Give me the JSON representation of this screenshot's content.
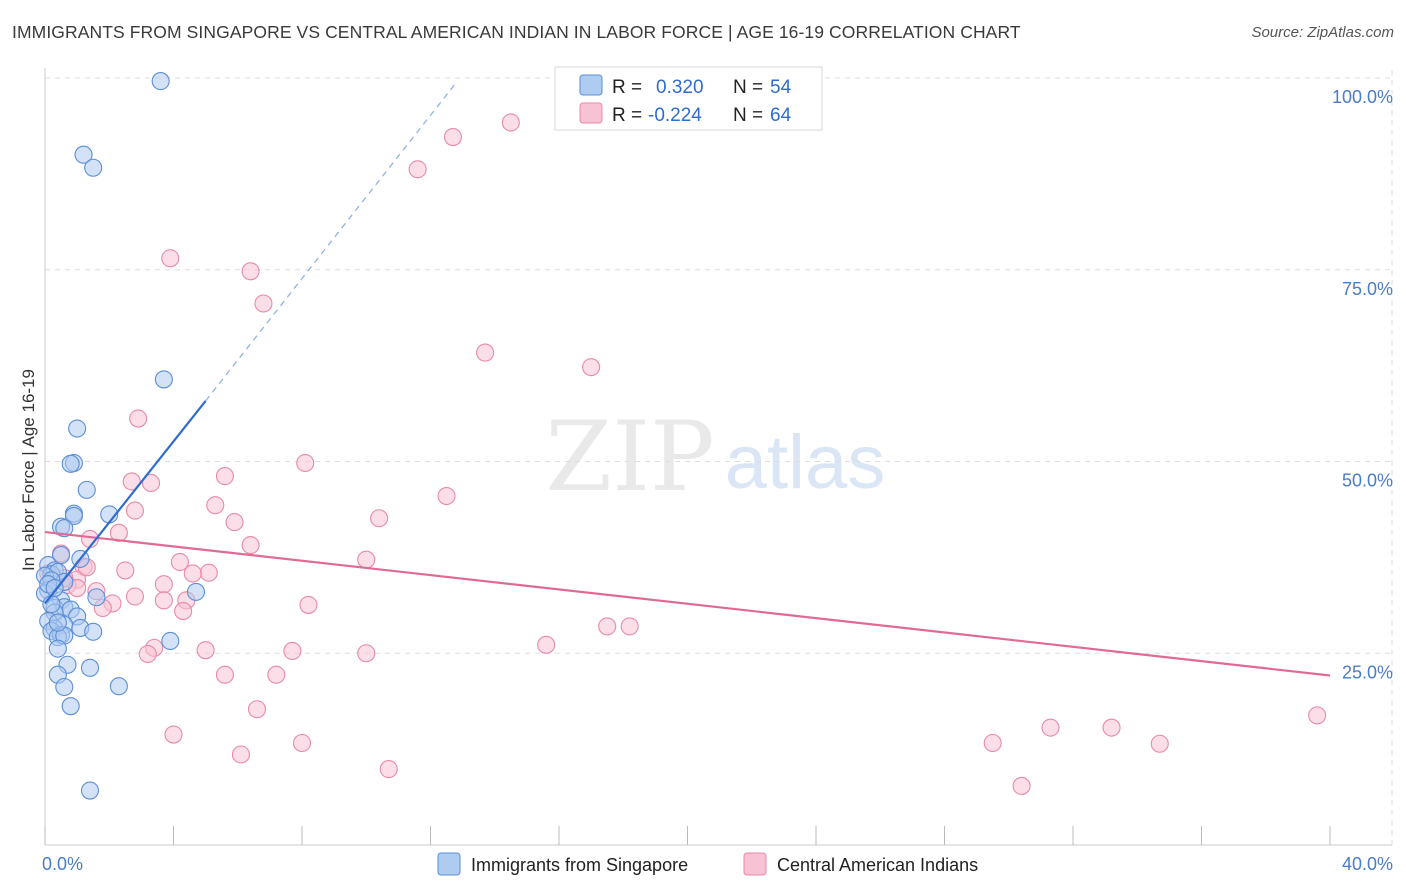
{
  "header": {
    "title": "IMMIGRANTS FROM SINGAPORE VS CENTRAL AMERICAN INDIAN IN LABOR FORCE | AGE 16-19 CORRELATION CHART",
    "source": "Source: ZipAtlas.com"
  },
  "watermark": {
    "zip": "ZIP",
    "atlas": "atlas"
  },
  "colors": {
    "blue_fill": "#aecbf0",
    "blue_stroke": "#5b8fd8",
    "blue_line": "#2f6bd0",
    "pink_fill": "#f7c3d4",
    "pink_stroke": "#e98aa8",
    "pink_line": "#e06a96",
    "tick_label": "#4a7cc9"
  },
  "legend": {
    "rows": [
      {
        "r_label": "R =",
        "r_value": "0.320",
        "n_label": "N =",
        "n_value": "54"
      },
      {
        "r_label": "R =",
        "r_value": "-0.224",
        "n_label": "N =",
        "n_value": "64"
      }
    ]
  },
  "chart_data": {
    "type": "scatter",
    "title": "IMMIGRANTS FROM SINGAPORE VS CENTRAL AMERICAN INDIAN IN LABOR FORCE | AGE 16-19 CORRELATION CHART",
    "xlabel": "",
    "ylabel": "In Labor Force | Age 16-19",
    "xlim": [
      0,
      40
    ],
    "ylim": [
      0,
      100
    ],
    "x_tick_labels": [
      "0.0%",
      "40.0%"
    ],
    "y_tick_labels": [
      "100.0%",
      "75.0%",
      "50.0%",
      "25.0%"
    ],
    "y_ticks": [
      100,
      75,
      50,
      25
    ],
    "x_minor_ticks": [
      0,
      4,
      8,
      12,
      16,
      20,
      24,
      28,
      32,
      36,
      40
    ],
    "grid": true,
    "series": [
      {
        "name": "Immigrants from Singapore",
        "color": "blue",
        "R": 0.32,
        "N": 54,
        "trend": {
          "x": [
            0.0,
            5.0
          ],
          "y": [
            31.5,
            57.9
          ]
        },
        "trend_extension": {
          "x": [
            5.0,
            12.8
          ],
          "y": [
            57.9,
            99.4
          ]
        },
        "points": [
          [
            3.6,
            99.6
          ],
          [
            1.2,
            90.0
          ],
          [
            1.5,
            88.3
          ],
          [
            3.7,
            60.7
          ],
          [
            1.0,
            54.3
          ],
          [
            0.9,
            49.8
          ],
          [
            0.8,
            49.7
          ],
          [
            1.3,
            46.3
          ],
          [
            0.9,
            43.2
          ],
          [
            0.9,
            42.9
          ],
          [
            2.0,
            43.1
          ],
          [
            0.5,
            41.5
          ],
          [
            0.6,
            41.3
          ],
          [
            0.5,
            37.8
          ],
          [
            1.1,
            37.3
          ],
          [
            0.1,
            36.5
          ],
          [
            0.3,
            35.8
          ],
          [
            0.2,
            35.3
          ],
          [
            0.4,
            35.6
          ],
          [
            0.0,
            35.1
          ],
          [
            0.6,
            34.3
          ],
          [
            0.2,
            34.5
          ],
          [
            0.1,
            33.2
          ],
          [
            0.0,
            32.8
          ],
          [
            0.5,
            31.9
          ],
          [
            4.7,
            33.0
          ],
          [
            1.6,
            32.3
          ],
          [
            0.3,
            30.9
          ],
          [
            0.6,
            31.0
          ],
          [
            0.8,
            30.7
          ],
          [
            0.3,
            30.3
          ],
          [
            1.0,
            29.8
          ],
          [
            0.1,
            29.2
          ],
          [
            0.6,
            28.7
          ],
          [
            0.3,
            28.2
          ],
          [
            1.1,
            28.3
          ],
          [
            0.2,
            27.9
          ],
          [
            1.5,
            27.8
          ],
          [
            0.5,
            27.4
          ],
          [
            0.4,
            27.1
          ],
          [
            0.6,
            27.3
          ],
          [
            3.9,
            26.6
          ],
          [
            0.4,
            25.6
          ],
          [
            0.7,
            23.5
          ],
          [
            1.4,
            23.1
          ],
          [
            0.4,
            22.2
          ],
          [
            0.6,
            20.6
          ],
          [
            2.3,
            20.7
          ],
          [
            0.8,
            18.1
          ],
          [
            1.4,
            7.1
          ],
          [
            0.2,
            31.4
          ],
          [
            0.4,
            29.0
          ],
          [
            0.1,
            34.0
          ],
          [
            0.3,
            33.5
          ]
        ]
      },
      {
        "name": "Central American Indians",
        "color": "pink",
        "R": -0.224,
        "N": 64,
        "trend": {
          "x": [
            0.0,
            40.0
          ],
          "y": [
            40.8,
            22.1
          ]
        },
        "points": [
          [
            14.5,
            94.2
          ],
          [
            12.7,
            92.3
          ],
          [
            11.6,
            88.1
          ],
          [
            3.9,
            76.5
          ],
          [
            6.4,
            74.8
          ],
          [
            6.8,
            70.6
          ],
          [
            13.7,
            64.2
          ],
          [
            17.0,
            62.3
          ],
          [
            2.9,
            55.6
          ],
          [
            8.1,
            49.8
          ],
          [
            5.6,
            48.1
          ],
          [
            3.3,
            47.2
          ],
          [
            2.7,
            47.4
          ],
          [
            12.5,
            45.5
          ],
          [
            5.3,
            44.3
          ],
          [
            2.8,
            43.6
          ],
          [
            10.4,
            42.6
          ],
          [
            5.9,
            42.1
          ],
          [
            2.3,
            40.7
          ],
          [
            1.4,
            39.9
          ],
          [
            6.4,
            39.1
          ],
          [
            0.5,
            38.0
          ],
          [
            10.0,
            37.2
          ],
          [
            4.2,
            36.9
          ],
          [
            1.2,
            36.3
          ],
          [
            2.5,
            35.8
          ],
          [
            5.1,
            35.5
          ],
          [
            4.6,
            35.4
          ],
          [
            1.0,
            34.6
          ],
          [
            0.1,
            35.4
          ],
          [
            0.7,
            33.9
          ],
          [
            3.7,
            34.0
          ],
          [
            1.6,
            33.1
          ],
          [
            1.0,
            33.5
          ],
          [
            2.8,
            32.4
          ],
          [
            4.4,
            31.9
          ],
          [
            3.7,
            31.9
          ],
          [
            2.1,
            31.5
          ],
          [
            1.8,
            30.9
          ],
          [
            4.3,
            30.5
          ],
          [
            8.2,
            31.3
          ],
          [
            17.5,
            28.5
          ],
          [
            18.2,
            28.5
          ],
          [
            15.6,
            26.1
          ],
          [
            3.4,
            25.7
          ],
          [
            5.0,
            25.4
          ],
          [
            7.7,
            25.3
          ],
          [
            10.0,
            25.0
          ],
          [
            3.2,
            24.9
          ],
          [
            5.6,
            22.2
          ],
          [
            7.2,
            22.2
          ],
          [
            6.6,
            17.7
          ],
          [
            4.0,
            14.4
          ],
          [
            8.0,
            13.3
          ],
          [
            6.1,
            11.8
          ],
          [
            10.7,
            9.9
          ],
          [
            29.5,
            13.3
          ],
          [
            31.3,
            15.3
          ],
          [
            33.2,
            15.3
          ],
          [
            34.7,
            13.2
          ],
          [
            30.4,
            7.7
          ],
          [
            39.6,
            16.9
          ],
          [
            1.3,
            36.2
          ],
          [
            0.6,
            34.8
          ]
        ]
      }
    ]
  },
  "bottom_legend": {
    "items": [
      {
        "label": "Immigrants from Singapore"
      },
      {
        "label": "Central American Indians"
      }
    ]
  }
}
